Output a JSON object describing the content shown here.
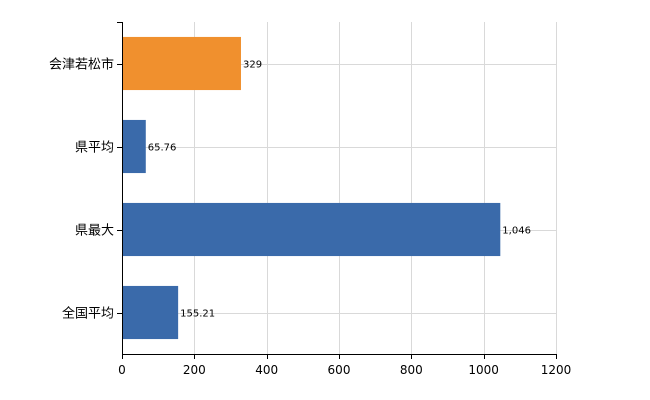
{
  "chart_data": {
    "type": "bar",
    "orientation": "horizontal",
    "categories": [
      "会津若松市",
      "県平均",
      "県最大",
      "全国平均"
    ],
    "values": [
      329,
      65.76,
      1046,
      155.21
    ],
    "value_labels": [
      "329",
      "65.76",
      "1,046",
      "155.21"
    ],
    "bar_colors": [
      "#F0902E",
      "#3A6AAA",
      "#3A6AAA",
      "#3A6AAA"
    ],
    "xlim": [
      0,
      1200
    ],
    "xticks": [
      0,
      200,
      400,
      600,
      800,
      1000,
      1200
    ],
    "grid": true,
    "title": "",
    "xlabel": "",
    "ylabel": ""
  }
}
